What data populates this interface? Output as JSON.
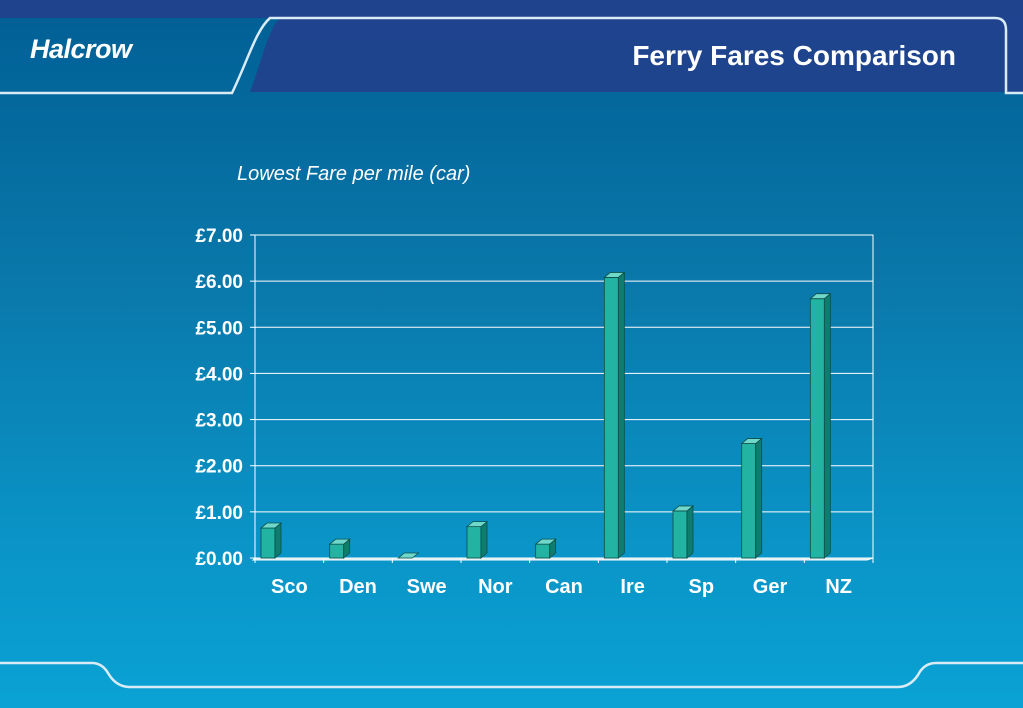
{
  "header": {
    "logo_text": "Halcrow",
    "title": "Ferry Fares Comparison"
  },
  "colors": {
    "bar_fill": "#22b3a2",
    "bar_top": "#6fd8cb",
    "bar_side": "#0f7c70",
    "background_top": "#005f95",
    "background_bottom": "#0aa2d4",
    "header_band": "#253e8c",
    "text": "#ffffff"
  },
  "chart_data": {
    "type": "bar",
    "title": "Lowest Fare per mile (car)",
    "categories": [
      "Sco",
      "Den",
      "Swe",
      "Nor",
      "Can",
      "Ire",
      "Sp",
      "Ger",
      "NZ"
    ],
    "values": [
      0.65,
      0.3,
      0.0,
      0.68,
      0.3,
      6.08,
      1.02,
      2.48,
      5.62
    ],
    "ylim": [
      0,
      7
    ],
    "yticks": [
      0,
      1,
      2,
      3,
      4,
      5,
      6,
      7
    ],
    "ytick_labels": [
      "£0.00",
      "£1.00",
      "£2.00",
      "£3.00",
      "£4.00",
      "£5.00",
      "£6.00",
      "£7.00"
    ],
    "xlabel": "",
    "ylabel": "",
    "grid": true,
    "legend": "none"
  }
}
